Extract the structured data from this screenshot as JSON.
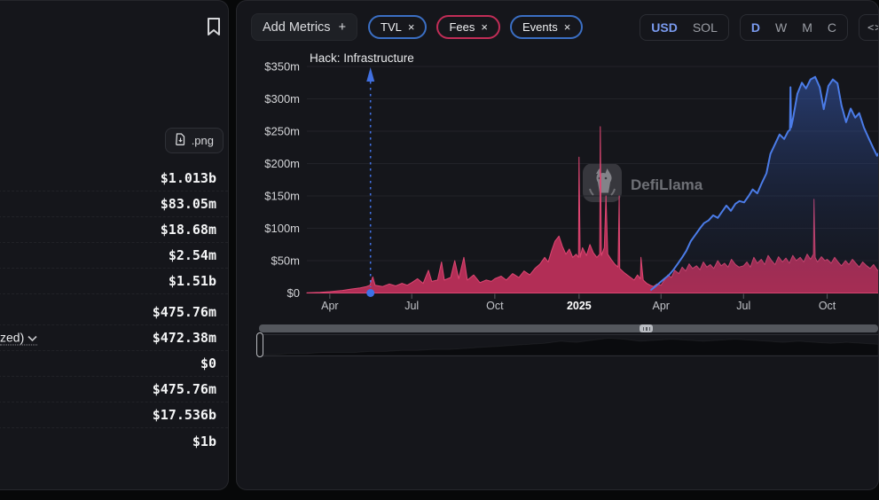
{
  "sidebar": {
    "download_label": ".png",
    "stats": [
      {
        "value": "$1.013b"
      },
      {
        "value": "$83.05m"
      },
      {
        "value": "$18.68m"
      },
      {
        "value": "$2.54m"
      },
      {
        "value": "$1.51b"
      },
      {
        "value": "$475.76m",
        "gap_above": true
      },
      {
        "label": "zed)",
        "value": "$472.38m",
        "expandable": true
      },
      {
        "value": "$0"
      },
      {
        "value": "$475.76m"
      },
      {
        "value": "$17.536b"
      },
      {
        "value": "$1b"
      }
    ]
  },
  "toolbar": {
    "add_metrics_label": "Add Metrics",
    "add_metrics_plus": "+",
    "metric_pills": [
      {
        "label": "TVL",
        "close": "×",
        "border": "#3b6fc4"
      },
      {
        "label": "Fees",
        "close": "×",
        "border": "#c12d57"
      },
      {
        "label": "Events",
        "close": "×",
        "border": "#3b6fc4"
      }
    ],
    "currency_toggle": {
      "options": [
        "USD",
        "SOL"
      ],
      "selected": "USD"
    },
    "interval_toggle": {
      "options": [
        "D",
        "W",
        "M",
        "C"
      ],
      "selected": "D"
    },
    "embed_label": "<>"
  },
  "watermark": {
    "text": "DefiLlama"
  },
  "chart_data": {
    "type": "area",
    "title": "",
    "x_axis": {
      "start": "Feb 2024",
      "end": "Nov 2025",
      "ticks": [
        {
          "label": "Apr",
          "f": 0.04
        },
        {
          "label": "Jul",
          "f": 0.183
        },
        {
          "label": "Oct",
          "f": 0.328
        },
        {
          "label": "2025",
          "f": 0.475,
          "bold": true
        },
        {
          "label": "Apr",
          "f": 0.618
        },
        {
          "label": "Jul",
          "f": 0.762
        },
        {
          "label": "Oct",
          "f": 0.908
        }
      ]
    },
    "y_axis": {
      "unit": "$m",
      "ylim": [
        0,
        385
      ],
      "grid": true,
      "ticks": [
        {
          "label": "$0",
          "v": 0
        },
        {
          "label": "$50m",
          "v": 50
        },
        {
          "label": "$100m",
          "v": 100
        },
        {
          "label": "$150m",
          "v": 150
        },
        {
          "label": "$200m",
          "v": 200
        },
        {
          "label": "$250m",
          "v": 250
        },
        {
          "label": "$300m",
          "v": 300
        },
        {
          "label": "$350m",
          "v": 350
        }
      ]
    },
    "annotation": {
      "label": "Hack: Infrastructure",
      "f": 0.111,
      "color": "#4170e0"
    },
    "series": [
      {
        "name": "Fees",
        "type": "area",
        "stroke": "#dd4672",
        "fill": "#b93058",
        "points": [
          [
            0.0,
            0.3
          ],
          [
            0.023,
            1
          ],
          [
            0.04,
            2
          ],
          [
            0.062,
            4
          ],
          [
            0.077,
            6
          ],
          [
            0.093,
            8
          ],
          [
            0.104,
            10
          ],
          [
            0.11,
            12
          ],
          [
            0.115,
            25
          ],
          [
            0.119,
            12
          ],
          [
            0.132,
            10
          ],
          [
            0.144,
            14
          ],
          [
            0.155,
            11
          ],
          [
            0.166,
            15
          ],
          [
            0.175,
            12
          ],
          [
            0.183,
            16
          ],
          [
            0.193,
            22
          ],
          [
            0.203,
            15
          ],
          [
            0.212,
            35
          ],
          [
            0.218,
            18
          ],
          [
            0.228,
            20
          ],
          [
            0.235,
            48
          ],
          [
            0.24,
            20
          ],
          [
            0.251,
            24
          ],
          [
            0.258,
            50
          ],
          [
            0.265,
            22
          ],
          [
            0.274,
            55
          ],
          [
            0.28,
            20
          ],
          [
            0.291,
            28
          ],
          [
            0.302,
            16
          ],
          [
            0.313,
            20
          ],
          [
            0.322,
            18
          ],
          [
            0.328,
            22
          ],
          [
            0.339,
            26
          ],
          [
            0.348,
            20
          ],
          [
            0.359,
            30
          ],
          [
            0.37,
            24
          ],
          [
            0.379,
            34
          ],
          [
            0.389,
            28
          ],
          [
            0.398,
            38
          ],
          [
            0.407,
            45
          ],
          [
            0.415,
            55
          ],
          [
            0.421,
            48
          ],
          [
            0.427,
            65
          ],
          [
            0.433,
            80
          ],
          [
            0.44,
            88
          ],
          [
            0.446,
            72
          ],
          [
            0.452,
            60
          ],
          [
            0.458,
            68
          ],
          [
            0.464,
            55
          ],
          [
            0.47,
            60
          ],
          [
            0.474,
            55
          ],
          [
            0.475,
            210
          ],
          [
            0.477,
            55
          ],
          [
            0.481,
            70
          ],
          [
            0.488,
            58
          ],
          [
            0.494,
            75
          ],
          [
            0.5,
            62
          ],
          [
            0.506,
            55
          ],
          [
            0.511,
            60
          ],
          [
            0.512,
            257
          ],
          [
            0.514,
            58
          ],
          [
            0.519,
            70
          ],
          [
            0.522,
            150
          ],
          [
            0.525,
            60
          ],
          [
            0.531,
            52
          ],
          [
            0.537,
            45
          ],
          [
            0.543,
            40
          ],
          [
            0.545,
            150
          ],
          [
            0.546,
            38
          ],
          [
            0.553,
            32
          ],
          [
            0.559,
            28
          ],
          [
            0.565,
            24
          ],
          [
            0.571,
            20
          ],
          [
            0.577,
            28
          ],
          [
            0.582,
            22
          ],
          [
            0.583,
            55
          ],
          [
            0.587,
            20
          ],
          [
            0.593,
            15
          ],
          [
            0.599,
            12
          ],
          [
            0.605,
            10
          ],
          [
            0.611,
            14
          ],
          [
            0.618,
            12
          ],
          [
            0.624,
            20
          ],
          [
            0.63,
            28
          ],
          [
            0.636,
            24
          ],
          [
            0.642,
            35
          ],
          [
            0.649,
            30
          ],
          [
            0.655,
            40
          ],
          [
            0.661,
            34
          ],
          [
            0.667,
            45
          ],
          [
            0.673,
            38
          ],
          [
            0.68,
            42
          ],
          [
            0.686,
            36
          ],
          [
            0.692,
            48
          ],
          [
            0.698,
            40
          ],
          [
            0.704,
            44
          ],
          [
            0.71,
            38
          ],
          [
            0.717,
            50
          ],
          [
            0.723,
            42
          ],
          [
            0.729,
            46
          ],
          [
            0.735,
            40
          ],
          [
            0.741,
            52
          ],
          [
            0.748,
            44
          ],
          [
            0.754,
            40
          ],
          [
            0.762,
            42
          ],
          [
            0.768,
            48
          ],
          [
            0.774,
            40
          ],
          [
            0.78,
            55
          ],
          [
            0.786,
            46
          ],
          [
            0.793,
            52
          ],
          [
            0.799,
            44
          ],
          [
            0.805,
            58
          ],
          [
            0.811,
            50
          ],
          [
            0.817,
            44
          ],
          [
            0.823,
            56
          ],
          [
            0.83,
            48
          ],
          [
            0.836,
            54
          ],
          [
            0.842,
            46
          ],
          [
            0.848,
            58
          ],
          [
            0.854,
            50
          ],
          [
            0.861,
            55
          ],
          [
            0.867,
            48
          ],
          [
            0.873,
            60
          ],
          [
            0.879,
            52
          ],
          [
            0.884,
            60
          ],
          [
            0.885,
            145
          ],
          [
            0.887,
            55
          ],
          [
            0.891,
            48
          ],
          [
            0.898,
            56
          ],
          [
            0.904,
            50
          ],
          [
            0.908,
            52
          ],
          [
            0.915,
            46
          ],
          [
            0.921,
            55
          ],
          [
            0.927,
            48
          ],
          [
            0.933,
            42
          ],
          [
            0.94,
            50
          ],
          [
            0.946,
            44
          ],
          [
            0.952,
            52
          ],
          [
            0.958,
            46
          ],
          [
            0.964,
            40
          ],
          [
            0.97,
            48
          ],
          [
            0.977,
            42
          ],
          [
            0.983,
            38
          ],
          [
            0.989,
            44
          ],
          [
            0.995,
            36
          ],
          [
            1.0,
            32
          ]
        ]
      },
      {
        "name": "TVL",
        "type": "line",
        "stroke": "#4b7ce8",
        "fill": "gradient",
        "points": [
          [
            0.601,
            5
          ],
          [
            0.608,
            10
          ],
          [
            0.616,
            16
          ],
          [
            0.624,
            22
          ],
          [
            0.632,
            28
          ],
          [
            0.639,
            35
          ],
          [
            0.647,
            45
          ],
          [
            0.655,
            55
          ],
          [
            0.662,
            65
          ],
          [
            0.67,
            80
          ],
          [
            0.678,
            90
          ],
          [
            0.686,
            100
          ],
          [
            0.693,
            108
          ],
          [
            0.701,
            112
          ],
          [
            0.709,
            120
          ],
          [
            0.717,
            116
          ],
          [
            0.724,
            125
          ],
          [
            0.732,
            135
          ],
          [
            0.74,
            127
          ],
          [
            0.748,
            138
          ],
          [
            0.755,
            142
          ],
          [
            0.763,
            140
          ],
          [
            0.771,
            150
          ],
          [
            0.778,
            160
          ],
          [
            0.786,
            154
          ],
          [
            0.794,
            170
          ],
          [
            0.802,
            185
          ],
          [
            0.809,
            215
          ],
          [
            0.817,
            230
          ],
          [
            0.825,
            245
          ],
          [
            0.833,
            238
          ],
          [
            0.84,
            250
          ],
          [
            0.843,
            252
          ],
          [
            0.844,
            318
          ],
          [
            0.845,
            256
          ],
          [
            0.848,
            268
          ],
          [
            0.856,
            308
          ],
          [
            0.864,
            325
          ],
          [
            0.871,
            316
          ],
          [
            0.879,
            330
          ],
          [
            0.887,
            334
          ],
          [
            0.895,
            318
          ],
          [
            0.902,
            284
          ],
          [
            0.91,
            320
          ],
          [
            0.918,
            330
          ],
          [
            0.926,
            324
          ],
          [
            0.933,
            290
          ],
          [
            0.941,
            264
          ],
          [
            0.949,
            285
          ],
          [
            0.957,
            271
          ],
          [
            0.964,
            278
          ],
          [
            0.972,
            256
          ],
          [
            0.98,
            240
          ],
          [
            0.988,
            225
          ],
          [
            0.995,
            212
          ],
          [
            1.0,
            219
          ]
        ]
      }
    ],
    "overview_series": [
      1,
      1,
      2,
      2,
      3,
      3,
      3,
      4,
      4,
      5,
      5,
      6,
      6,
      7,
      8,
      9,
      10,
      11,
      12,
      14,
      13,
      15,
      17,
      16,
      14,
      15,
      16,
      15,
      14,
      15,
      16,
      15,
      14,
      13,
      14,
      13,
      12,
      13,
      12,
      11
    ]
  }
}
